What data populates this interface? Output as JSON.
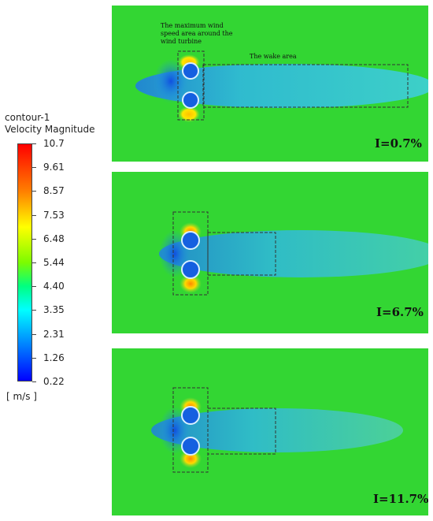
{
  "legend": {
    "title_line1": "contour-1",
    "title_line2": "Velocity Magnitude",
    "ticks": [
      "10.7",
      "9.61",
      "8.57",
      "7.53",
      "6.48",
      "5.44",
      "4.40",
      "3.35",
      "2.31",
      "1.26",
      "0.22"
    ],
    "unit": "[ m/s ]"
  },
  "panels": [
    {
      "case_label": "I=0.7%",
      "annotation_max_line1": "The maximum wind",
      "annotation_max_line2": "speed area around the",
      "annotation_max_line3": "wind turbine",
      "annotation_wake": "The wake area"
    },
    {
      "case_label": "I=6.7%"
    },
    {
      "case_label": "I=11.7%"
    }
  ],
  "colors": {
    "field": "#33d633",
    "wake": "#2fb8e0",
    "high_speed": "#ffd400"
  }
}
